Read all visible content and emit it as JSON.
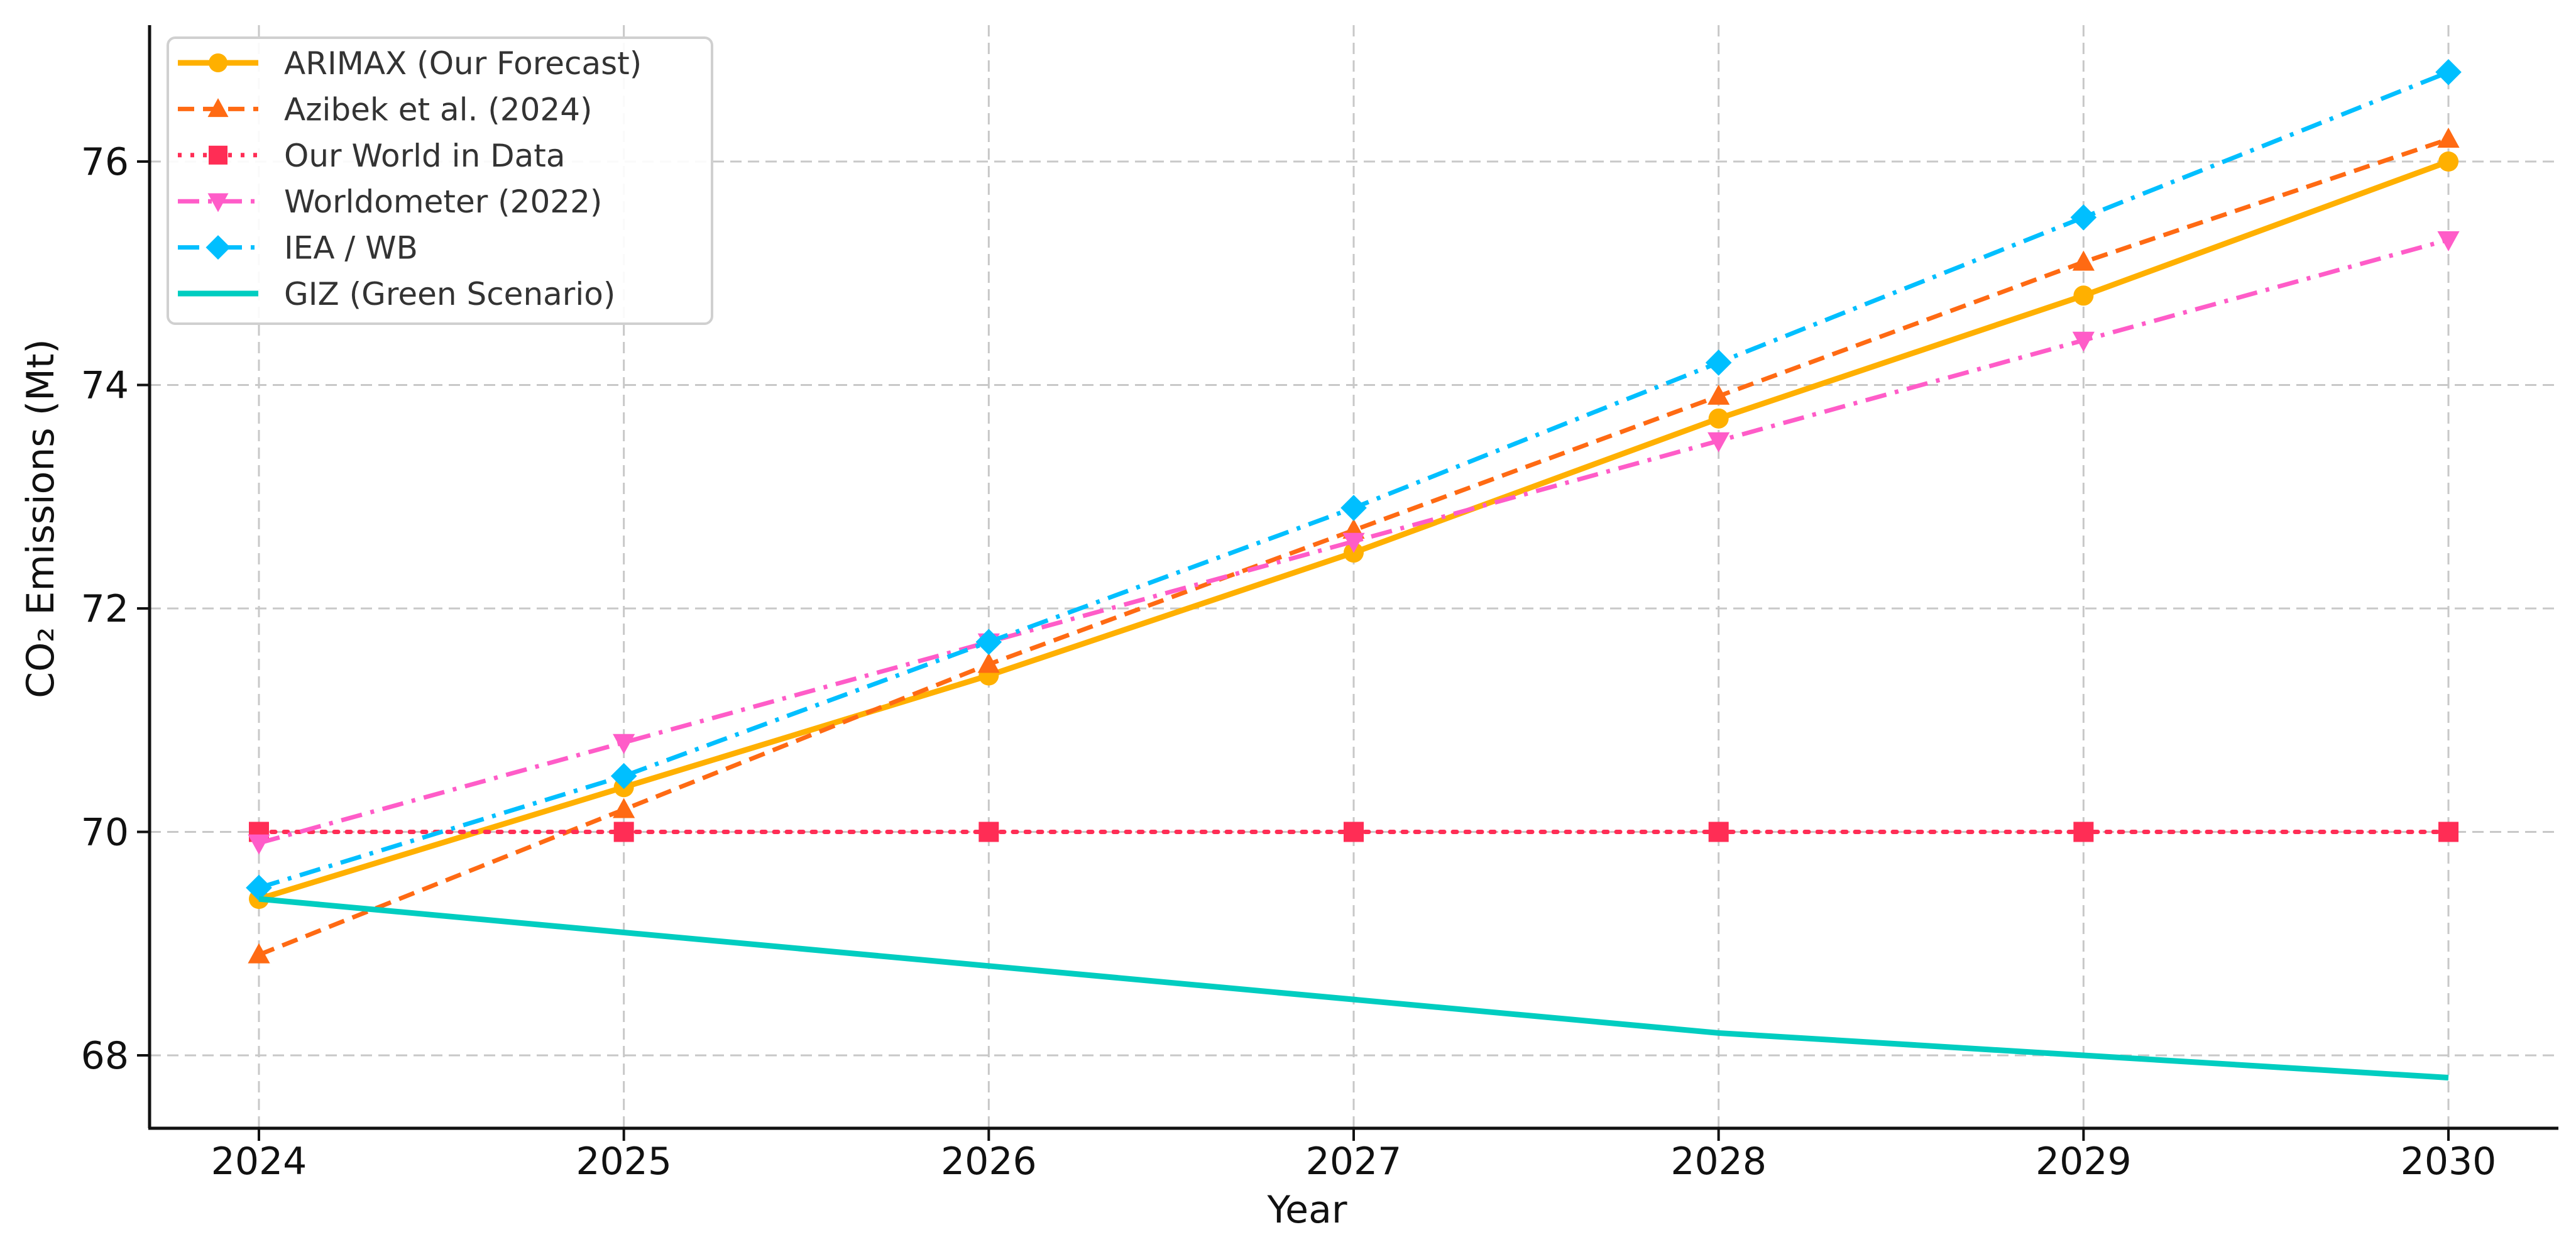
{
  "chart_data": {
    "type": "line",
    "title": "",
    "xlabel": "Year",
    "ylabel": "CO₂ Emissions (Mt)",
    "x": [
      2024,
      2025,
      2026,
      2027,
      2028,
      2029,
      2030
    ],
    "x_ticks": [
      "2024",
      "2025",
      "2026",
      "2027",
      "2028",
      "2029",
      "2030"
    ],
    "y_ticks": [
      "68",
      "70",
      "72",
      "74",
      "76"
    ],
    "xlim": [
      2023.7,
      2030.3
    ],
    "ylim": [
      67.35,
      77.22
    ],
    "grid": true,
    "legend_position": "upper left",
    "series": [
      {
        "name": "ARIMAX (Our Forecast)",
        "color": "#FFB000",
        "linestyle": "solid",
        "marker": "circle",
        "values": [
          69.4,
          70.4,
          71.4,
          72.5,
          73.7,
          74.8,
          76.0
        ]
      },
      {
        "name": "Azibek et al. (2024)",
        "color": "#FF6A13",
        "linestyle": "dashed",
        "marker": "triangle-up",
        "values": [
          68.9,
          70.2,
          71.5,
          72.7,
          73.9,
          75.1,
          76.2
        ]
      },
      {
        "name": "Our World in Data",
        "color": "#FF2D55",
        "linestyle": "dotted",
        "marker": "square",
        "values": [
          70.0,
          70.0,
          70.0,
          70.0,
          70.0,
          70.0,
          70.0
        ]
      },
      {
        "name": "Worldometer (2022)",
        "color": "#FF5CC8",
        "linestyle": "dashdot",
        "marker": "triangle-down",
        "values": [
          69.9,
          70.8,
          71.7,
          72.6,
          73.5,
          74.4,
          75.3
        ]
      },
      {
        "name": "IEA / WB",
        "color": "#00BFFF",
        "linestyle": "dashdot",
        "marker": "diamond",
        "values": [
          69.5,
          70.5,
          71.7,
          72.9,
          74.2,
          75.5,
          76.8
        ]
      },
      {
        "name": "GIZ (Green Scenario)",
        "color": "#00CDC0",
        "linestyle": "solid",
        "marker": "none",
        "values": [
          69.4,
          69.1,
          68.8,
          68.5,
          68.2,
          68.0,
          67.8
        ]
      }
    ]
  }
}
